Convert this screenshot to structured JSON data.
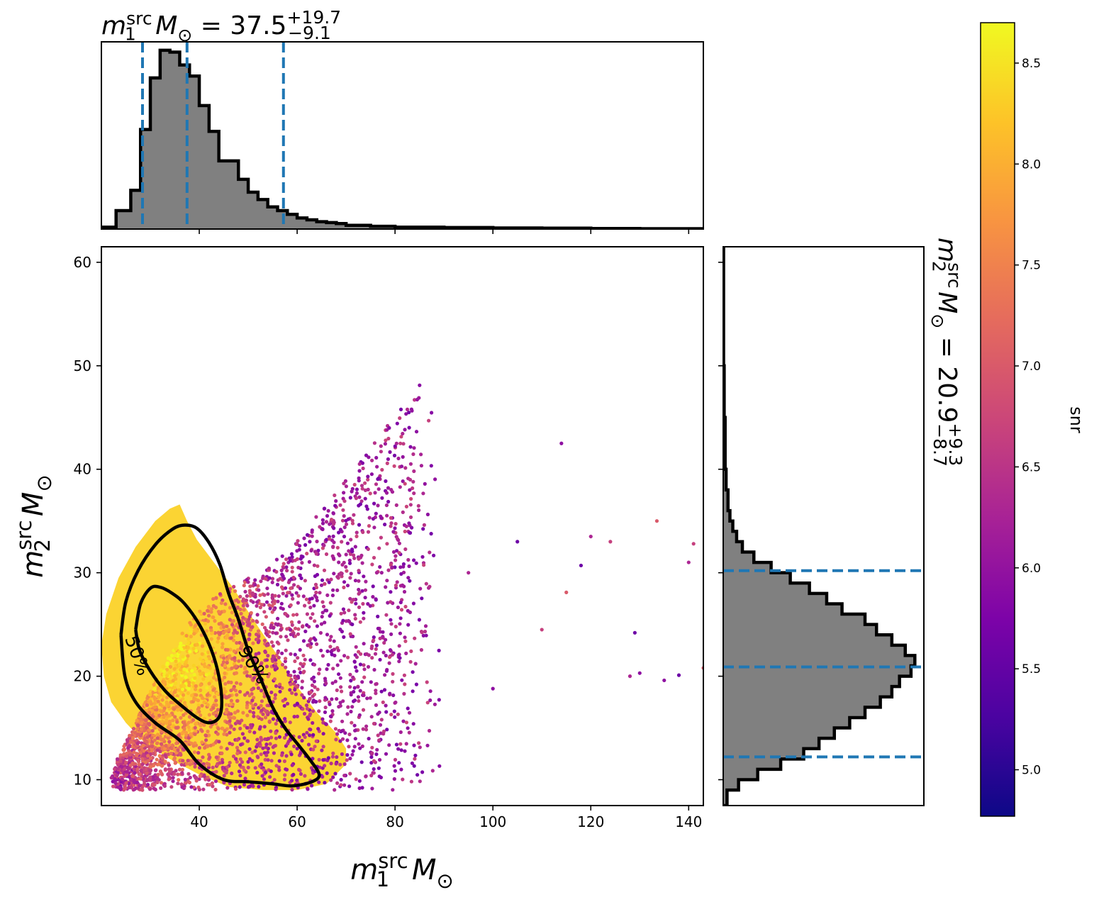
{
  "chart_data": {
    "type": "scatter",
    "top_title": {
      "label": "m",
      "sub": "1",
      "sup": "src",
      "unit": "M",
      "unit_sub": "⊙",
      "eq": " = 37.5",
      "plus": "+19.7",
      "minus": "−9.1"
    },
    "right_title": {
      "label": "m",
      "sub": "2",
      "sup": "src",
      "unit": "M",
      "unit_sub": "⊙",
      "eq": " = 20.9",
      "plus": "+9.3",
      "minus": "−8.7"
    },
    "xlabel": {
      "label": "m",
      "sub": "1",
      "sup": "src",
      "unit": "M",
      "unit_sub": "⊙"
    },
    "ylabel": {
      "label": "m",
      "sub": "2",
      "sup": "src",
      "unit": "M",
      "unit_sub": "⊙"
    },
    "xlim": [
      20,
      143
    ],
    "ylim": [
      7.5,
      61.5
    ],
    "x_ticks": [
      "40",
      "60",
      "80",
      "100",
      "120",
      "140"
    ],
    "y_ticks": [
      "10",
      "20",
      "30",
      "40",
      "50",
      "60"
    ],
    "scatter_color_key": "snr",
    "colorbar": {
      "label": "snr",
      "range": [
        4.77,
        8.7
      ],
      "ticks": [
        "5.0",
        "5.5",
        "6.0",
        "6.5",
        "7.0",
        "7.5",
        "8.0",
        "8.5"
      ],
      "colormap": "plasma"
    },
    "m1_histogram": {
      "bin_edges": [
        20,
        23,
        26,
        28,
        30,
        32,
        34,
        36,
        38,
        40,
        42,
        44,
        46,
        48,
        50,
        52,
        54,
        56,
        58,
        60,
        62,
        64,
        66,
        68,
        70,
        75,
        80,
        90,
        100,
        110,
        120,
        130,
        143
      ],
      "density": [
        0.01,
        0.1,
        0.21,
        0.54,
        0.82,
        0.97,
        0.96,
        0.89,
        0.83,
        0.67,
        0.53,
        0.37,
        0.37,
        0.27,
        0.2,
        0.16,
        0.12,
        0.1,
        0.08,
        0.06,
        0.05,
        0.04,
        0.035,
        0.03,
        0.02,
        0.015,
        0.01,
        0.008,
        0.006,
        0.005,
        0.003,
        0.002
      ],
      "quantile_lines": [
        28.4,
        37.5,
        57.2
      ]
    },
    "m2_histogram": {
      "bin_edges": [
        7.5,
        9,
        10,
        11,
        12,
        13,
        14,
        15,
        16,
        17,
        18,
        19,
        20,
        21,
        22,
        23,
        24,
        25,
        26,
        27,
        28,
        29,
        30,
        31,
        32,
        33,
        34,
        35,
        36,
        38,
        40,
        45,
        50,
        61.5
      ],
      "density": [
        0.02,
        0.08,
        0.18,
        0.3,
        0.42,
        0.5,
        0.58,
        0.66,
        0.74,
        0.82,
        0.88,
        0.92,
        0.98,
        1.0,
        0.95,
        0.88,
        0.8,
        0.74,
        0.62,
        0.54,
        0.45,
        0.35,
        0.25,
        0.16,
        0.1,
        0.07,
        0.05,
        0.035,
        0.025,
        0.015,
        0.01,
        0.005,
        0.002
      ],
      "quantile_lines": [
        12.2,
        20.9,
        30.2
      ]
    },
    "contours": [
      {
        "label": "50%",
        "points": [
          [
            27,
            24.5
          ],
          [
            28,
            27
          ],
          [
            30,
            28.5
          ],
          [
            32,
            28.6
          ],
          [
            34.5,
            28
          ],
          [
            37,
            27
          ],
          [
            40,
            25
          ],
          [
            42.5,
            22.5
          ],
          [
            44,
            20
          ],
          [
            44.6,
            17.5
          ],
          [
            44,
            16
          ],
          [
            42,
            15.5
          ],
          [
            39.5,
            16
          ],
          [
            36,
            17.3
          ],
          [
            33,
            18.6
          ],
          [
            30,
            20.5
          ],
          [
            27.8,
            22.5
          ],
          [
            27,
            24.5
          ]
        ]
      },
      {
        "label": "90%",
        "points": [
          [
            24,
            24
          ],
          [
            25,
            27.2
          ],
          [
            27.5,
            30.2
          ],
          [
            31,
            32.7
          ],
          [
            34.5,
            34.2
          ],
          [
            37,
            34.6
          ],
          [
            39.5,
            34.3
          ],
          [
            42,
            32.9
          ],
          [
            44.2,
            30.8
          ],
          [
            46,
            28
          ],
          [
            48,
            25.5
          ],
          [
            50,
            22.5
          ],
          [
            52.5,
            19.8
          ],
          [
            55,
            17
          ],
          [
            57.5,
            15
          ],
          [
            60,
            13.5
          ],
          [
            62.5,
            12
          ],
          [
            64.5,
            10.5
          ],
          [
            63,
            9.8
          ],
          [
            59,
            9.4
          ],
          [
            55,
            9.6
          ],
          [
            50,
            9.8
          ],
          [
            45,
            10
          ],
          [
            40,
            11.5
          ],
          [
            36,
            13.8
          ],
          [
            31,
            15.5
          ],
          [
            27,
            17.5
          ],
          [
            24.8,
            20
          ],
          [
            24,
            24
          ]
        ]
      }
    ]
  }
}
